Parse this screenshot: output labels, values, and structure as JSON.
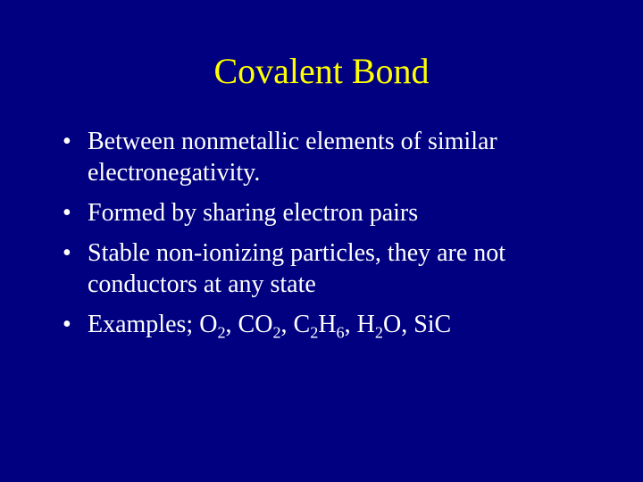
{
  "slide": {
    "background_color": "#000080",
    "title": {
      "text": "Covalent Bond",
      "color": "#ffff00",
      "fontsize": 40
    },
    "body": {
      "color": "#ffffff",
      "fontsize": 28,
      "bullets": [
        {
          "text": "Between nonmetallic elements of similar electronegativity."
        },
        {
          "text": "Formed by sharing electron pairs"
        },
        {
          "text": "Stable non-ionizing particles, they are not conductors at any state"
        },
        {
          "text": "Examples; O2, CO2, C2H6, H2O, SiC",
          "examples_prefix": "Examples; ",
          "formulas": [
            {
              "parts": [
                {
                  "t": "O"
                },
                {
                  "t": "2",
                  "sub": true
                }
              ]
            },
            {
              "parts": [
                {
                  "t": "CO"
                },
                {
                  "t": "2",
                  "sub": true
                }
              ]
            },
            {
              "parts": [
                {
                  "t": "C"
                },
                {
                  "t": "2",
                  "sub": true
                },
                {
                  "t": "H"
                },
                {
                  "t": "6",
                  "sub": true
                }
              ]
            },
            {
              "parts": [
                {
                  "t": "H"
                },
                {
                  "t": "2",
                  "sub": true
                },
                {
                  "t": "O"
                }
              ]
            },
            {
              "parts": [
                {
                  "t": "SiC"
                }
              ]
            }
          ],
          "separator": ", "
        }
      ]
    }
  }
}
